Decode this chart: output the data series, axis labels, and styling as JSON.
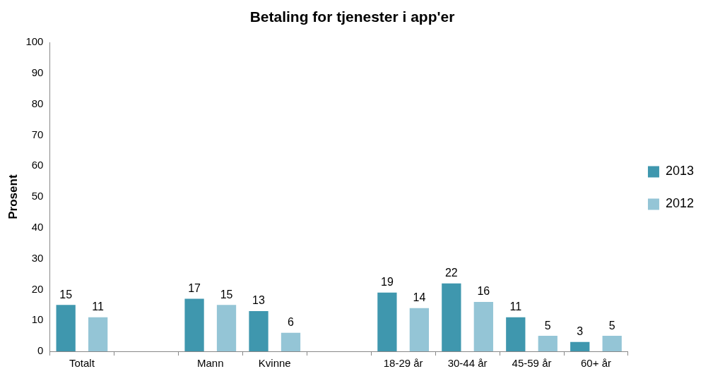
{
  "chart_data": {
    "type": "bar",
    "title": "Betaling for tjenester i app'er",
    "ylabel": "Prosent",
    "categories": [
      "Totalt",
      null,
      "Mann",
      "Kvinne",
      null,
      "18-29 år",
      "30-44 år",
      "45-59 år",
      "60+ år"
    ],
    "series": [
      {
        "name": "2013",
        "color": "#3f97ae",
        "values": [
          15,
          null,
          17,
          13,
          null,
          19,
          22,
          11,
          3
        ]
      },
      {
        "name": "2012",
        "color": "#94c5d6",
        "values": [
          11,
          null,
          15,
          6,
          null,
          14,
          16,
          5,
          5
        ]
      }
    ],
    "ylim": [
      0,
      100
    ],
    "yticks": [
      0,
      10,
      20,
      30,
      40,
      50,
      60,
      70,
      80,
      90,
      100
    ],
    "legend": "right",
    "data_labels": true
  }
}
